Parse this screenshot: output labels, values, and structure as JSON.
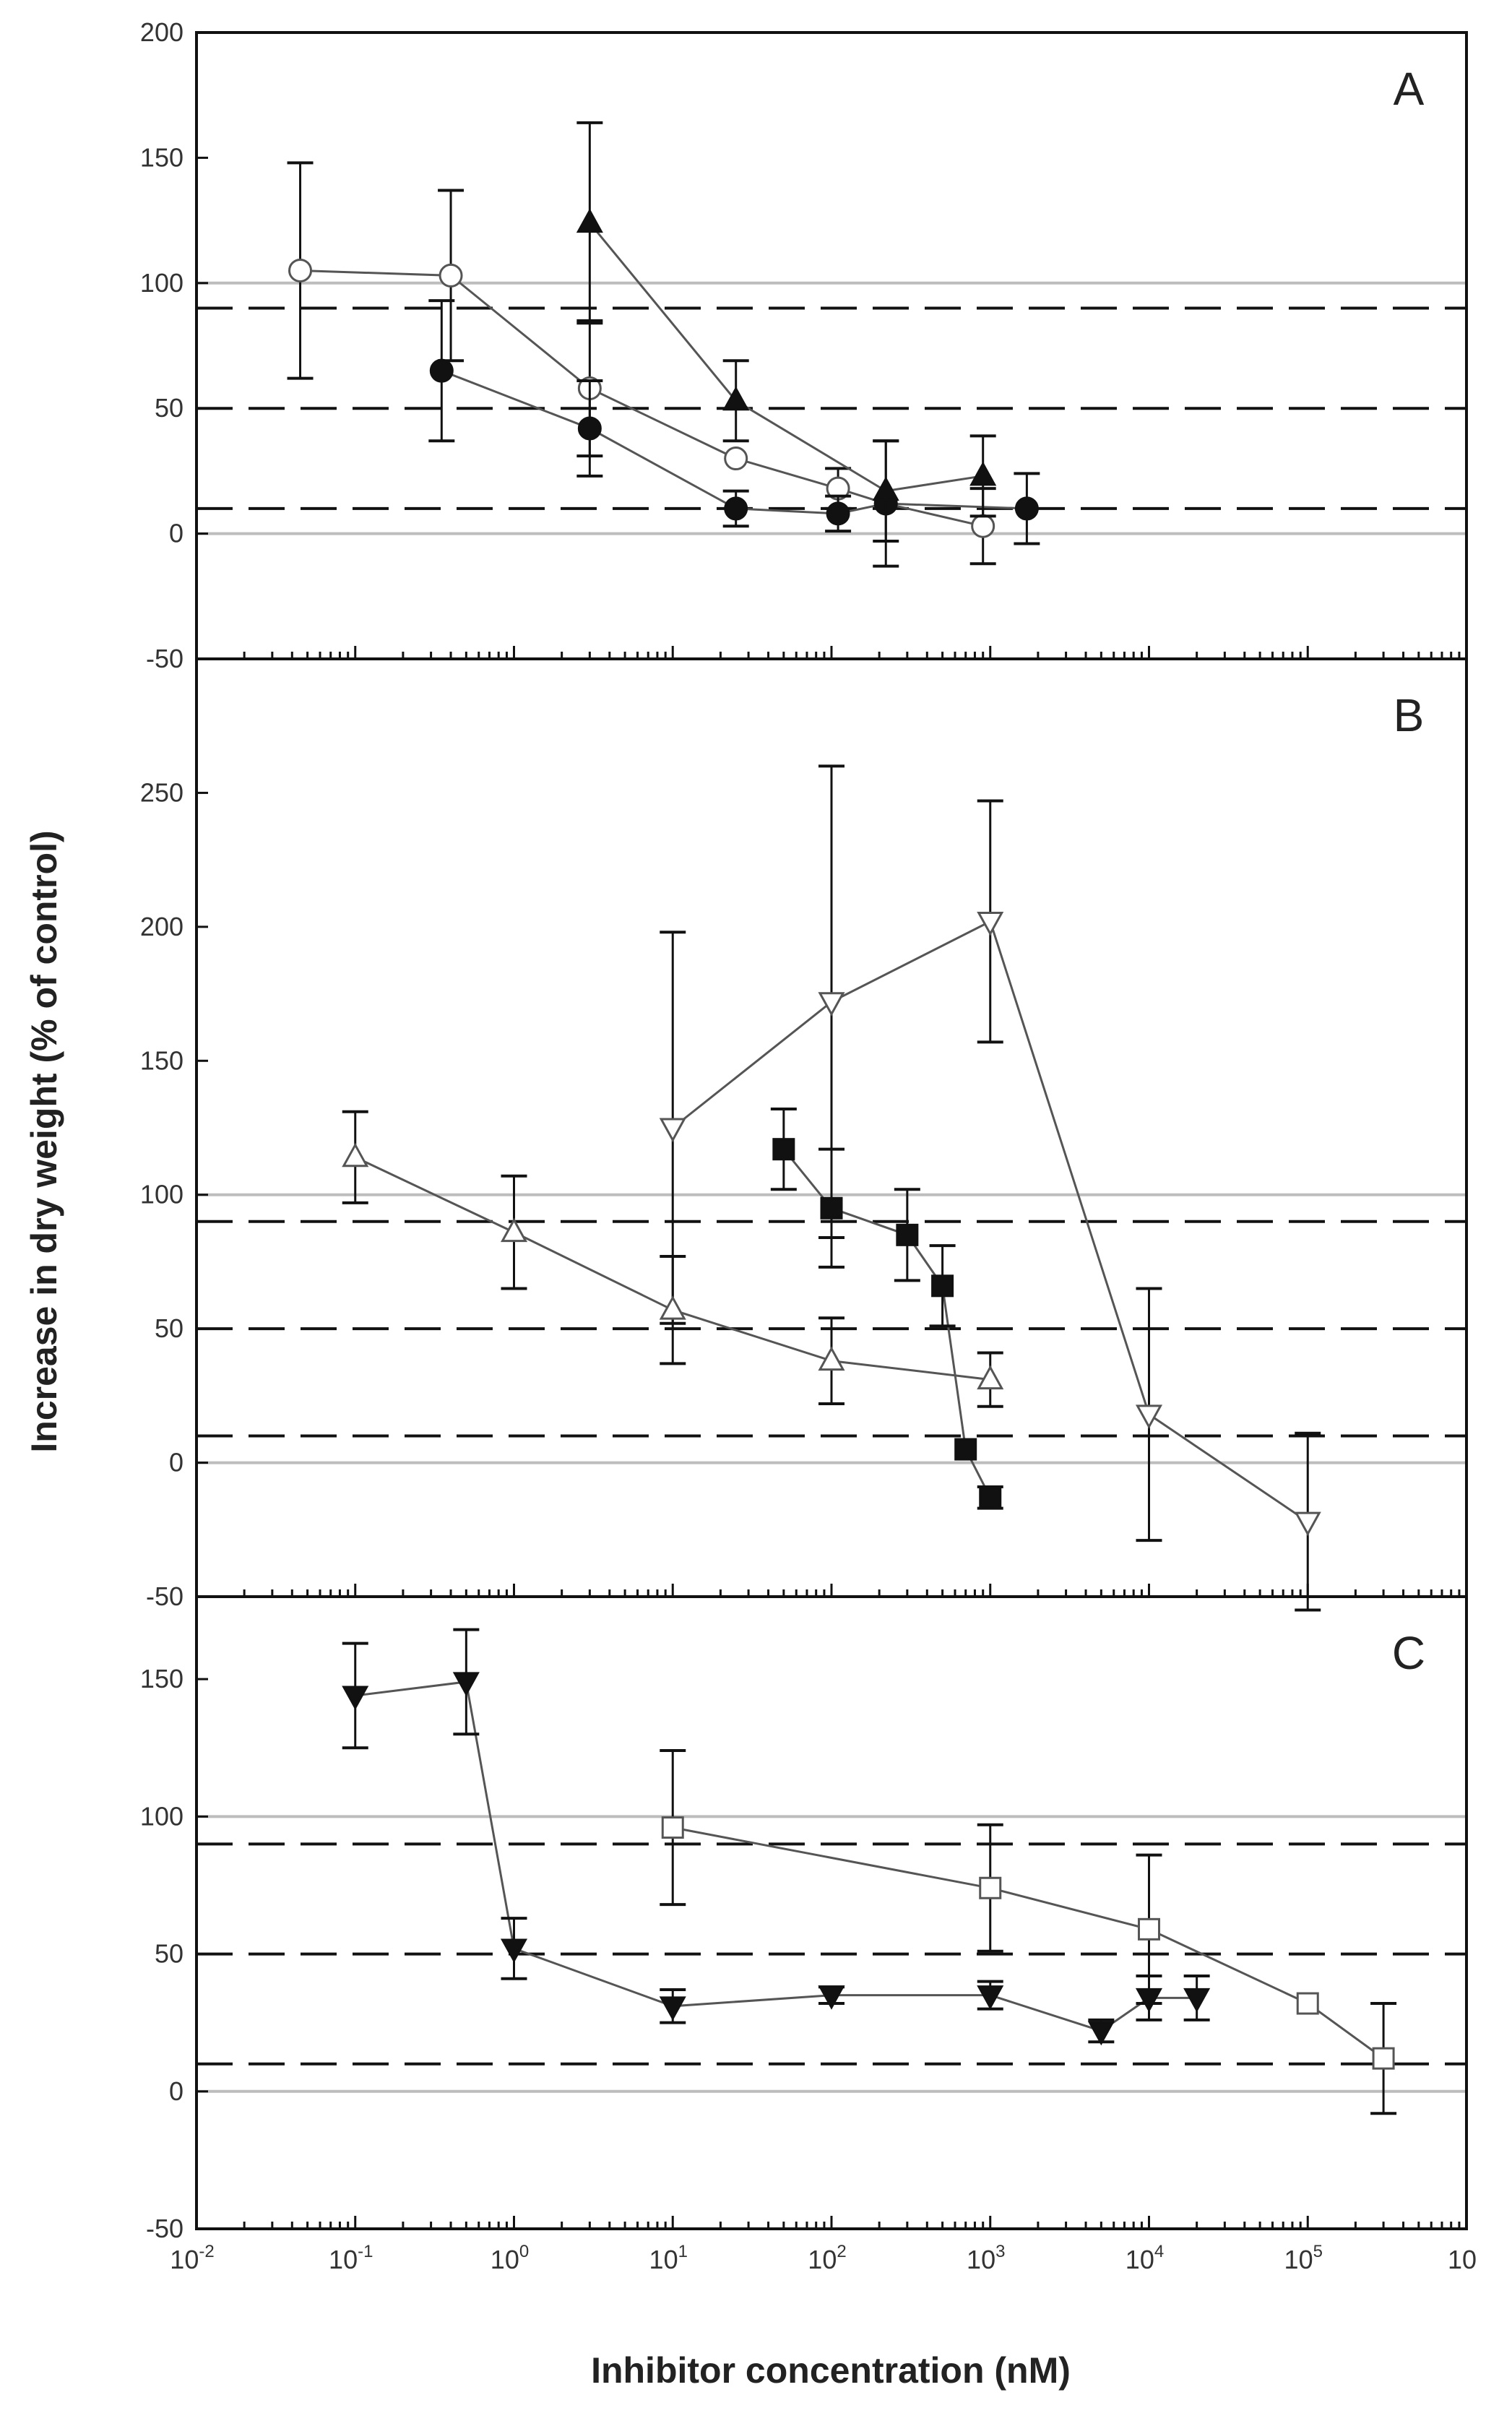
{
  "chart_data": {
    "type": "scatter",
    "x_axis": {
      "label": "Inhibitor concentration (nM)",
      "scale": "log",
      "range": [
        0.01,
        1000000
      ],
      "ticks": [
        {
          "base": "10",
          "exp": "-2"
        },
        {
          "base": "10",
          "exp": "-1"
        },
        {
          "base": "10",
          "exp": "0"
        },
        {
          "base": "10",
          "exp": "1"
        },
        {
          "base": "10",
          "exp": "2"
        },
        {
          "base": "10",
          "exp": "3"
        },
        {
          "base": "10",
          "exp": "4"
        },
        {
          "base": "10",
          "exp": "5"
        },
        {
          "base": "10",
          "exp": ""
        }
      ]
    },
    "y_axis_label": "Increase in dry weight (% of control)",
    "panels": [
      {
        "name": "A",
        "ylim": [
          -50,
          200
        ],
        "yticks": [
          -50,
          0,
          50,
          100,
          150,
          200
        ],
        "gray_lines": [
          0,
          100
        ],
        "dashed_lines": [
          10,
          50,
          90
        ],
        "series": [
          {
            "marker": "open-circle",
            "points": [
              {
                "x": 0.045,
                "y": 105,
                "err": 43
              },
              {
                "x": 0.4,
                "y": 103,
                "err": 34
              },
              {
                "x": 3,
                "y": 58,
                "err": 27
              },
              {
                "x": 25,
                "y": 30,
                "err": 0
              },
              {
                "x": 110,
                "y": 18,
                "err": 8
              },
              {
                "x": 220,
                "y": 12,
                "err": 0
              },
              {
                "x": 900,
                "y": 3,
                "err": 15
              }
            ]
          },
          {
            "marker": "filled-circle",
            "points": [
              {
                "x": 0.35,
                "y": 65,
                "err": 28
              },
              {
                "x": 3,
                "y": 42,
                "err": 19
              },
              {
                "x": 25,
                "y": 10,
                "err": 7
              },
              {
                "x": 110,
                "y": 8,
                "err": 7
              },
              {
                "x": 220,
                "y": 12,
                "err": 25
              },
              {
                "x": 1700,
                "y": 10,
                "err": 14
              }
            ]
          },
          {
            "marker": "filled-triangle-up",
            "points": [
              {
                "x": 3,
                "y": 124,
                "err": 40
              },
              {
                "x": 25,
                "y": 53,
                "err": 16
              },
              {
                "x": 220,
                "y": 17,
                "err": 20
              },
              {
                "x": 900,
                "y": 23,
                "err": 16
              }
            ]
          }
        ]
      },
      {
        "name": "B",
        "ylim": [
          -50,
          300
        ],
        "yticks": [
          -50,
          0,
          50,
          100,
          150,
          200,
          250
        ],
        "gray_lines": [
          0,
          100
        ],
        "dashed_lines": [
          10,
          50,
          90
        ],
        "series": [
          {
            "marker": "open-triangle-down",
            "points": [
              {
                "x": 10,
                "y": 125,
                "err": 73
              },
              {
                "x": 100,
                "y": 172,
                "err": 88
              },
              {
                "x": 1000,
                "y": 202,
                "err": 45
              },
              {
                "x": 10000,
                "y": 18,
                "err": 47
              },
              {
                "x": 100000,
                "y": -22,
                "err": 33
              }
            ]
          },
          {
            "marker": "open-triangle-up",
            "points": [
              {
                "x": 0.1,
                "y": 114,
                "err": 17
              },
              {
                "x": 1,
                "y": 86,
                "err": 21
              },
              {
                "x": 10,
                "y": 57,
                "err": 20
              },
              {
                "x": 100,
                "y": 38,
                "err": 16
              },
              {
                "x": 1000,
                "y": 31,
                "err": 10
              }
            ]
          },
          {
            "marker": "filled-square",
            "points": [
              {
                "x": 50,
                "y": 117,
                "err": 15
              },
              {
                "x": 100,
                "y": 95,
                "err": 22
              },
              {
                "x": 300,
                "y": 85,
                "err": 17
              },
              {
                "x": 500,
                "y": 66,
                "err": 15
              },
              {
                "x": 700,
                "y": 5,
                "err": 0
              },
              {
                "x": 1000,
                "y": -13,
                "err": 4
              }
            ]
          }
        ]
      },
      {
        "name": "C",
        "ylim": [
          -50,
          180
        ],
        "yticks": [
          -50,
          0,
          50,
          100,
          150
        ],
        "gray_lines": [
          0,
          100
        ],
        "dashed_lines": [
          10,
          50,
          90
        ],
        "series": [
          {
            "marker": "filled-triangle-down",
            "points": [
              {
                "x": 0.1,
                "y": 144,
                "err": 19
              },
              {
                "x": 0.5,
                "y": 149,
                "err": 19
              },
              {
                "x": 1,
                "y": 52,
                "err": 11
              },
              {
                "x": 10,
                "y": 31,
                "err": 6
              },
              {
                "x": 100,
                "y": 35,
                "err": 3
              },
              {
                "x": 1000,
                "y": 35,
                "err": 5
              },
              {
                "x": 5000,
                "y": 22,
                "err": 4
              },
              {
                "x": 10000,
                "y": 34,
                "err": 8
              },
              {
                "x": 20000,
                "y": 34,
                "err": 8
              }
            ]
          },
          {
            "marker": "open-square",
            "points": [
              {
                "x": 10,
                "y": 96,
                "err": 28
              },
              {
                "x": 1000,
                "y": 74,
                "err": 23
              },
              {
                "x": 10000,
                "y": 59,
                "err": 27
              },
              {
                "x": 100000,
                "y": 32,
                "err": 0
              },
              {
                "x": 300000,
                "y": 12,
                "err": 20
              }
            ]
          }
        ]
      }
    ]
  }
}
